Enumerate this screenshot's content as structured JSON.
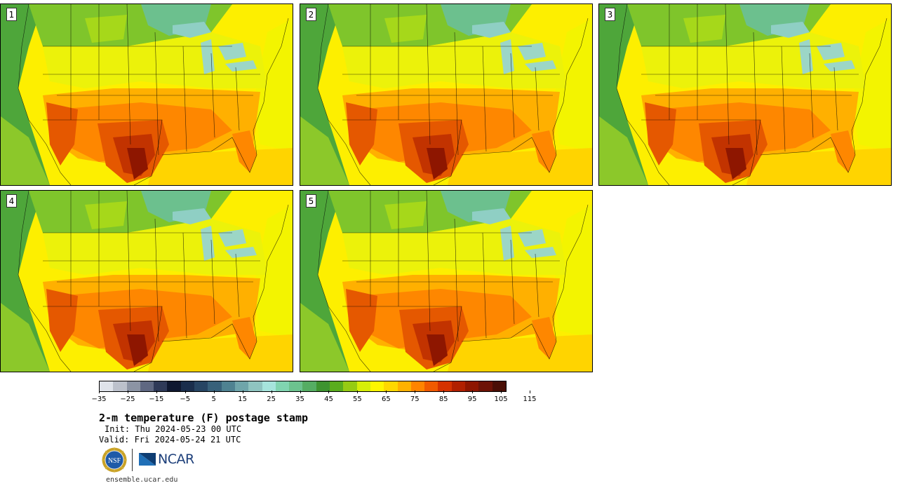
{
  "panels": [
    {
      "label": "1"
    },
    {
      "label": "2"
    },
    {
      "label": "3"
    },
    {
      "label": "4"
    },
    {
      "label": "5"
    }
  ],
  "colorbar": {
    "colors": [
      "#dfe3ea",
      "#bcc1cb",
      "#8c94a4",
      "#5f6882",
      "#2f3a58",
      "#0f1830",
      "#1a2e4c",
      "#274563",
      "#38617a",
      "#4f8291",
      "#6fa5aa",
      "#8fc4c0",
      "#a6e4dc",
      "#80d4b0",
      "#6cc28e",
      "#55ad63",
      "#3e9330",
      "#5aad1e",
      "#96cb13",
      "#d6ee08",
      "#fff600",
      "#ffd800",
      "#ffb100",
      "#ff8400",
      "#f05a00",
      "#d53200",
      "#b12000",
      "#8e1600",
      "#6d1306",
      "#4a0f06"
    ],
    "tick_labels": [
      "−35",
      "−25",
      "−15",
      "−5",
      "5",
      "15",
      "25",
      "35",
      "45",
      "55",
      "65",
      "75",
      "85",
      "95",
      "105",
      "115"
    ]
  },
  "title": "2-m temperature (F) postage stamp",
  "init": "Init: Thu 2024-05-23 00 UTC",
  "valid": "Valid: Fri 2024-05-24 21 UTC",
  "logos": {
    "nsf": "NSF",
    "ncar": "NCAR"
  },
  "website": "ensemble.ucar.edu"
}
